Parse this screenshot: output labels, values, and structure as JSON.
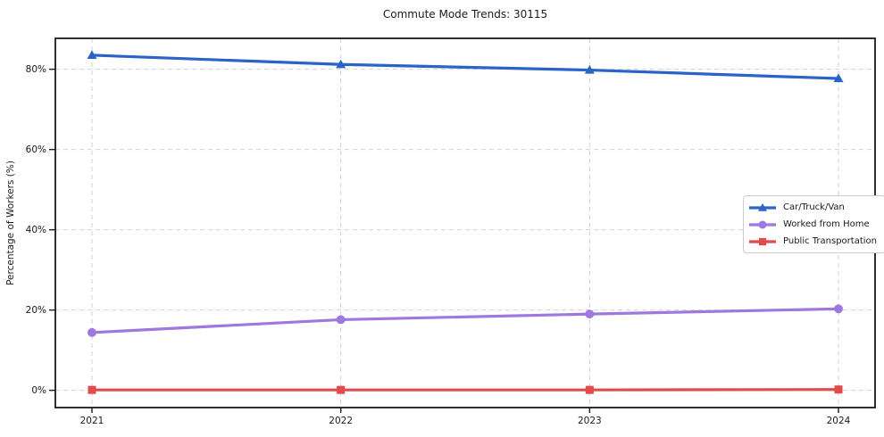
{
  "title": "Commute Mode Trends: 30115",
  "chart_data": {
    "type": "line",
    "title": "Commute Mode Trends: 30115",
    "xlabel": "",
    "ylabel": "Percentage of Workers (%)",
    "categories": [
      "2021",
      "2022",
      "2023",
      "2024"
    ],
    "series": [
      {
        "name": "Car/Truck/Van",
        "marker": "triangle",
        "color": "#2a64c6",
        "values": [
          83.5,
          81.2,
          79.8,
          77.7
        ]
      },
      {
        "name": "Worked from Home",
        "marker": "circle",
        "color": "#9e78de",
        "values": [
          14.4,
          17.6,
          19.0,
          20.3
        ]
      },
      {
        "name": "Public Transportation",
        "marker": "square",
        "color": "#e04b4b",
        "values": [
          0.1,
          0.1,
          0.1,
          0.2
        ]
      }
    ],
    "yticks": [
      0,
      20,
      40,
      60,
      80
    ],
    "ytick_labels": [
      "0%",
      "20%",
      "40%",
      "60%",
      "80%"
    ],
    "ylim": [
      -4.3,
      87.7
    ],
    "grid": true,
    "legend_position": "center-right",
    "colors": {
      "grid": "#d2d2d2",
      "spine": "#1a1a1a",
      "tick_text": "#1a1a1a",
      "background": "#ffffff"
    }
  }
}
